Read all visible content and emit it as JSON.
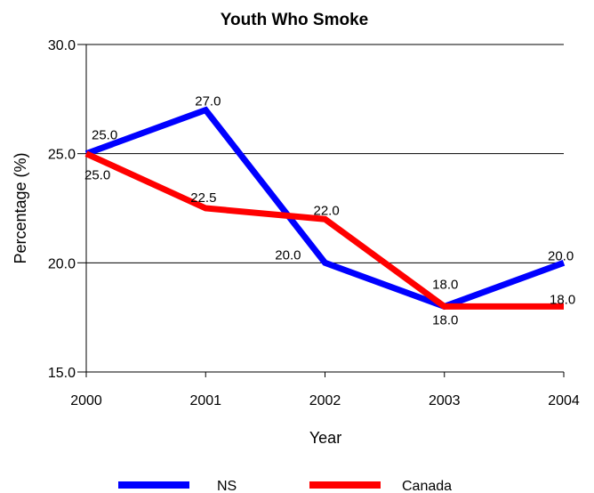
{
  "chart_data": {
    "type": "line",
    "title": "Youth Who Smoke",
    "xlabel": "Year",
    "ylabel": "Percentage (%)",
    "categories": [
      "2000",
      "2001",
      "2002",
      "2003",
      "2004"
    ],
    "yticks": [
      "15.0",
      "20.0",
      "25.0",
      "30.0"
    ],
    "ylim": [
      15,
      30
    ],
    "grid": true,
    "legend_position": "bottom",
    "series": [
      {
        "name": "NS",
        "color": "#0000ff",
        "values": [
          25.0,
          27.0,
          20.0,
          18.0,
          20.0
        ],
        "labels": [
          "25.0",
          "27.0",
          "20.0",
          "18.0",
          "20.0"
        ]
      },
      {
        "name": "Canada",
        "color": "#ff0000",
        "values": [
          25.0,
          22.5,
          22.0,
          18.0,
          18.0
        ],
        "labels": [
          "25.0",
          "22.5",
          "22.0",
          "18.0",
          "18.0"
        ]
      }
    ]
  }
}
